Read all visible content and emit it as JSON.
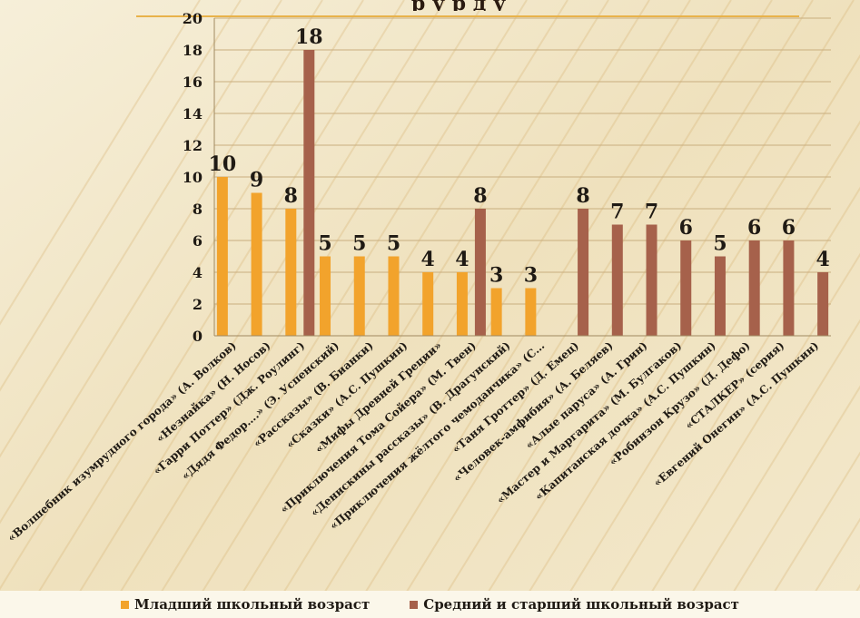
{
  "chart_data": {
    "type": "bar",
    "title": "",
    "xlabel": "",
    "ylabel": "",
    "ylim": [
      0,
      20
    ],
    "y_ticks": [
      0,
      2,
      4,
      6,
      8,
      10,
      12,
      14,
      16,
      18,
      20
    ],
    "grid": true,
    "legend_position": "bottom",
    "categories": [
      "«Волшебник изумрудного города» (А. Волков)",
      "«Незнайка» (Н. Носов)",
      "«Гарри Поттер» (Дж. Роулинг)",
      "«Дядя Федор….» (Э. Успенский)",
      "«Рассказы» (В. Бианки)",
      "«Сказки» (А.С. Пушкин)",
      "«Мифы Древней Греции»",
      "«Приключения Тома Сойера» (М. Твен)",
      "«Денискины рассказы» (В. Драгунский)",
      "«Приключения жёлтого чемоданчика» (С…",
      "«Таня Гроттер» (Д. Емец)",
      "«Человек-амфибия» (А. Беляев)",
      "«Алые паруса» (А. Грин)",
      "«Мастер и Маргарита» (М. Булгаков)",
      "«Капитанская дочка» (А.С. Пушкин)",
      "«Робинзон Крузо» (Д. Дефо)",
      "«СТАЛКЕР» (серия)",
      "«Евгений Онегин» (А.С. Пушкин)"
    ],
    "series": [
      {
        "name": "Младший школьный возраст",
        "color": "#f2a32c",
        "values": [
          10,
          9,
          8,
          5,
          5,
          5,
          4,
          4,
          3,
          3,
          null,
          null,
          null,
          null,
          null,
          null,
          null,
          null
        ]
      },
      {
        "name": "Средний и старший школьный возраст",
        "color": "#a6614b",
        "values": [
          null,
          null,
          18,
          null,
          null,
          null,
          null,
          8,
          null,
          null,
          8,
          7,
          7,
          6,
          5,
          6,
          6,
          4
        ]
      }
    ],
    "data_labels": [
      {
        "text": "10",
        "category": 0,
        "series": 0
      },
      {
        "text": "9",
        "category": 1,
        "series": 0
      },
      {
        "text": "8",
        "category": 2,
        "series": 0
      },
      {
        "text": "18",
        "category": 2,
        "series": 1
      },
      {
        "text": "5",
        "category": 3,
        "series": 0
      },
      {
        "text": "5",
        "category": 4,
        "series": 0
      },
      {
        "text": "5",
        "category": 5,
        "series": 0
      },
      {
        "text": "4",
        "category": 6,
        "series": 0
      },
      {
        "text": "4",
        "category": 7,
        "series": 0
      },
      {
        "text": "8",
        "category": 7,
        "series": 1
      },
      {
        "text": "3",
        "category": 8,
        "series": 0
      },
      {
        "text": "3",
        "category": 9,
        "series": 0
      },
      {
        "text": "8",
        "category": 10,
        "series": 1
      },
      {
        "text": "7",
        "category": 11,
        "series": 1
      },
      {
        "text": "7",
        "category": 12,
        "series": 1
      },
      {
        "text": "6",
        "category": 13,
        "series": 1
      },
      {
        "text": "5",
        "category": 14,
        "series": 1
      },
      {
        "text": "6",
        "category": 15,
        "series": 1
      },
      {
        "text": "6",
        "category": 16,
        "series": 1
      },
      {
        "text": "4",
        "category": 17,
        "series": 1
      }
    ]
  },
  "title_fragment": "р             у  р                  д у"
}
